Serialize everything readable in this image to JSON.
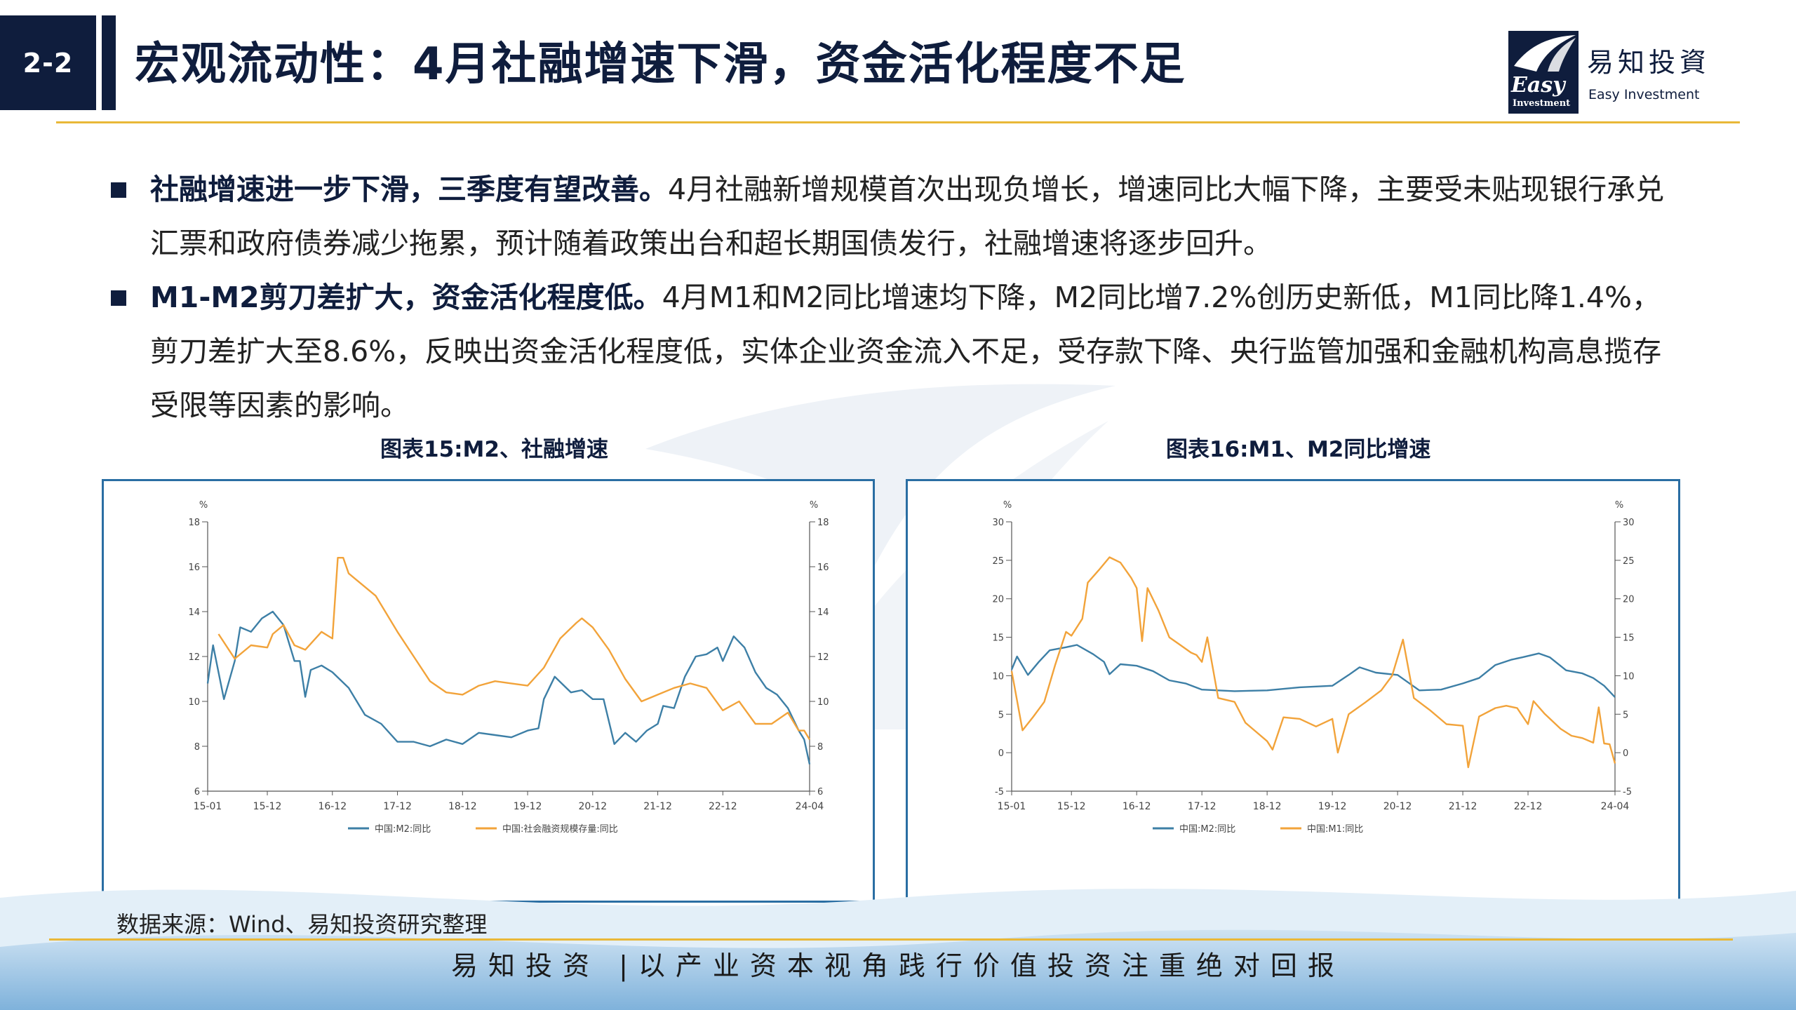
{
  "header": {
    "section_number": "2-2",
    "title": "宏观流动性：4月社融增速下滑，资金活化程度不足",
    "logo_cn": "易知投資",
    "logo_en": "Easy Investment",
    "logo_mark_text": "Easy",
    "logo_mark_sub": "Investment"
  },
  "bullets": [
    {
      "bold": "社融增速进一步下滑，三季度有望改善。",
      "text": "4月社融新增规模首次出现负增长，增速同比大幅下降，主要受未贴现银行承兑汇票和政府债券减少拖累，预计随着政策出台和超长期国债发行，社融增速将逐步回升。"
    },
    {
      "bold": "M1-M2剪刀差扩大，资金活化程度低。",
      "text": "4月M1和M2同比增速均下降，M2同比增7.2%创历史新低，M1同比降1.4%，剪刀差扩大至8.6%，反映出资金活化程度低，实体企业资金流入不足，受存款下降、央行监管加强和金融机构高息揽存受限等因素的影响。"
    }
  ],
  "source": "数据来源：Wind、易知投资研究整理",
  "footer": {
    "slogan": "易知投资 |以产业资本视角践行价值投资注重绝对回报"
  },
  "colors": {
    "navy": "#0f1d3d",
    "gold": "#e9b838",
    "m2": "#3d7fa6",
    "tsf": "#f2a33a",
    "frame": "#2a6ea3"
  },
  "chart_data": [
    {
      "type": "line",
      "title": "图表15:M2、社融增速",
      "unit_left": "%",
      "unit_right": "%",
      "ylim": [
        6,
        18
      ],
      "yticks": [
        "6",
        "8",
        "10",
        "12",
        "14",
        "16",
        "18"
      ],
      "x_range": [
        "2015-01",
        "2024-04"
      ],
      "xticks": [
        "15-01",
        "15-12",
        "16-12",
        "17-12",
        "18-12",
        "19-12",
        "20-12",
        "21-12",
        "22-12",
        "24-04"
      ],
      "legend_position": "bottom",
      "series": [
        {
          "name": "中国:M2:同比",
          "color": "#3d7fa6",
          "points": [
            [
              "2015-01",
              10.8
            ],
            [
              "2015-02",
              12.5
            ],
            [
              "2015-04",
              10.1
            ],
            [
              "2015-06",
              11.8
            ],
            [
              "2015-07",
              13.3
            ],
            [
              "2015-09",
              13.1
            ],
            [
              "2015-11",
              13.7
            ],
            [
              "2016-01",
              14.0
            ],
            [
              "2016-03",
              13.4
            ],
            [
              "2016-05",
              11.8
            ],
            [
              "2016-06",
              11.8
            ],
            [
              "2016-07",
              10.2
            ],
            [
              "2016-08",
              11.4
            ],
            [
              "2016-10",
              11.6
            ],
            [
              "2016-12",
              11.3
            ],
            [
              "2017-03",
              10.6
            ],
            [
              "2017-06",
              9.4
            ],
            [
              "2017-09",
              9.0
            ],
            [
              "2017-12",
              8.2
            ],
            [
              "2018-03",
              8.2
            ],
            [
              "2018-06",
              8.0
            ],
            [
              "2018-09",
              8.3
            ],
            [
              "2018-12",
              8.1
            ],
            [
              "2019-03",
              8.6
            ],
            [
              "2019-06",
              8.5
            ],
            [
              "2019-09",
              8.4
            ],
            [
              "2019-12",
              8.7
            ],
            [
              "2020-02",
              8.8
            ],
            [
              "2020-03",
              10.1
            ],
            [
              "2020-05",
              11.1
            ],
            [
              "2020-08",
              10.4
            ],
            [
              "2020-10",
              10.5
            ],
            [
              "2020-12",
              10.1
            ],
            [
              "2021-02",
              10.1
            ],
            [
              "2021-04",
              8.1
            ],
            [
              "2021-06",
              8.6
            ],
            [
              "2021-08",
              8.2
            ],
            [
              "2021-10",
              8.7
            ],
            [
              "2021-12",
              9.0
            ],
            [
              "2022-01",
              9.8
            ],
            [
              "2022-03",
              9.7
            ],
            [
              "2022-05",
              11.1
            ],
            [
              "2022-07",
              12.0
            ],
            [
              "2022-09",
              12.1
            ],
            [
              "2022-11",
              12.4
            ],
            [
              "2022-12",
              11.8
            ],
            [
              "2023-02",
              12.9
            ],
            [
              "2023-04",
              12.4
            ],
            [
              "2023-06",
              11.3
            ],
            [
              "2023-08",
              10.6
            ],
            [
              "2023-10",
              10.3
            ],
            [
              "2023-12",
              9.7
            ],
            [
              "2024-02",
              8.7
            ],
            [
              "2024-03",
              8.3
            ],
            [
              "2024-04",
              7.2
            ]
          ]
        },
        {
          "name": "中国:社会融资规模存量:同比",
          "color": "#f2a33a",
          "points": [
            [
              "2015-03",
              13.0
            ],
            [
              "2015-06",
              11.9
            ],
            [
              "2015-09",
              12.5
            ],
            [
              "2015-12",
              12.4
            ],
            [
              "2016-01",
              13.0
            ],
            [
              "2016-03",
              13.4
            ],
            [
              "2016-05",
              12.5
            ],
            [
              "2016-07",
              12.3
            ],
            [
              "2016-10",
              13.1
            ],
            [
              "2016-12",
              12.8
            ],
            [
              "2017-01",
              16.4
            ],
            [
              "2017-02",
              16.4
            ],
            [
              "2017-03",
              15.7
            ],
            [
              "2017-06",
              15.1
            ],
            [
              "2017-08",
              14.7
            ],
            [
              "2017-10",
              13.9
            ],
            [
              "2017-12",
              13.1
            ],
            [
              "2018-03",
              12.0
            ],
            [
              "2018-06",
              10.9
            ],
            [
              "2018-09",
              10.4
            ],
            [
              "2018-12",
              10.3
            ],
            [
              "2019-03",
              10.7
            ],
            [
              "2019-06",
              10.9
            ],
            [
              "2019-09",
              10.8
            ],
            [
              "2019-12",
              10.7
            ],
            [
              "2020-03",
              11.5
            ],
            [
              "2020-06",
              12.8
            ],
            [
              "2020-09",
              13.5
            ],
            [
              "2020-10",
              13.7
            ],
            [
              "2020-12",
              13.3
            ],
            [
              "2021-03",
              12.3
            ],
            [
              "2021-06",
              11.0
            ],
            [
              "2021-09",
              10.0
            ],
            [
              "2021-12",
              10.3
            ],
            [
              "2022-03",
              10.6
            ],
            [
              "2022-06",
              10.8
            ],
            [
              "2022-09",
              10.6
            ],
            [
              "2022-12",
              9.6
            ],
            [
              "2023-03",
              10.0
            ],
            [
              "2023-06",
              9.0
            ],
            [
              "2023-09",
              9.0
            ],
            [
              "2023-12",
              9.5
            ],
            [
              "2024-02",
              8.7
            ],
            [
              "2024-03",
              8.7
            ],
            [
              "2024-04",
              8.3
            ]
          ]
        }
      ]
    },
    {
      "type": "line",
      "title": "图表16:M1、M2同比增速",
      "unit_left": "%",
      "unit_right": "%",
      "ylim": [
        -5,
        30
      ],
      "yticks": [
        "-5",
        "0",
        "5",
        "10",
        "15",
        "20",
        "25",
        "30"
      ],
      "x_range": [
        "2015-01",
        "2024-04"
      ],
      "xticks": [
        "15-01",
        "15-12",
        "16-12",
        "17-12",
        "18-12",
        "19-12",
        "20-12",
        "21-12",
        "22-12",
        "24-04"
      ],
      "legend_position": "bottom",
      "series": [
        {
          "name": "中国:M2:同比",
          "color": "#3d7fa6",
          "points": [
            [
              "2015-01",
              10.8
            ],
            [
              "2015-02",
              12.5
            ],
            [
              "2015-04",
              10.1
            ],
            [
              "2015-06",
              11.8
            ],
            [
              "2015-08",
              13.3
            ],
            [
              "2015-11",
              13.7
            ],
            [
              "2016-01",
              14.0
            ],
            [
              "2016-04",
              12.8
            ],
            [
              "2016-06",
              11.8
            ],
            [
              "2016-07",
              10.2
            ],
            [
              "2016-09",
              11.5
            ],
            [
              "2016-12",
              11.3
            ],
            [
              "2017-03",
              10.6
            ],
            [
              "2017-06",
              9.4
            ],
            [
              "2017-09",
              9.0
            ],
            [
              "2017-12",
              8.2
            ],
            [
              "2018-06",
              8.0
            ],
            [
              "2018-12",
              8.1
            ],
            [
              "2019-06",
              8.5
            ],
            [
              "2019-12",
              8.7
            ],
            [
              "2020-03",
              10.1
            ],
            [
              "2020-05",
              11.1
            ],
            [
              "2020-08",
              10.4
            ],
            [
              "2020-12",
              10.1
            ],
            [
              "2021-04",
              8.1
            ],
            [
              "2021-08",
              8.2
            ],
            [
              "2021-12",
              9.0
            ],
            [
              "2022-03",
              9.7
            ],
            [
              "2022-06",
              11.4
            ],
            [
              "2022-09",
              12.1
            ],
            [
              "2022-11",
              12.4
            ],
            [
              "2023-02",
              12.9
            ],
            [
              "2023-04",
              12.4
            ],
            [
              "2023-07",
              10.7
            ],
            [
              "2023-10",
              10.3
            ],
            [
              "2023-12",
              9.7
            ],
            [
              "2024-02",
              8.7
            ],
            [
              "2024-04",
              7.2
            ]
          ]
        },
        {
          "name": "中国:M1:同比",
          "color": "#f2a33a",
          "points": [
            [
              "2015-01",
              10.6
            ],
            [
              "2015-03",
              2.9
            ],
            [
              "2015-05",
              4.7
            ],
            [
              "2015-07",
              6.6
            ],
            [
              "2015-09",
              11.4
            ],
            [
              "2015-11",
              15.7
            ],
            [
              "2015-12",
              15.2
            ],
            [
              "2016-02",
              17.4
            ],
            [
              "2016-03",
              22.1
            ],
            [
              "2016-05",
              23.7
            ],
            [
              "2016-07",
              25.4
            ],
            [
              "2016-09",
              24.7
            ],
            [
              "2016-11",
              22.7
            ],
            [
              "2016-12",
              21.4
            ],
            [
              "2017-01",
              14.5
            ],
            [
              "2017-02",
              21.4
            ],
            [
              "2017-04",
              18.5
            ],
            [
              "2017-06",
              15.0
            ],
            [
              "2017-08",
              14.0
            ],
            [
              "2017-10",
              13.0
            ],
            [
              "2017-11",
              12.7
            ],
            [
              "2017-12",
              11.8
            ],
            [
              "2018-01",
              15.0
            ],
            [
              "2018-03",
              7.1
            ],
            [
              "2018-06",
              6.6
            ],
            [
              "2018-08",
              3.9
            ],
            [
              "2018-10",
              2.7
            ],
            [
              "2018-12",
              1.5
            ],
            [
              "2019-01",
              0.4
            ],
            [
              "2019-03",
              4.6
            ],
            [
              "2019-06",
              4.4
            ],
            [
              "2019-09",
              3.4
            ],
            [
              "2019-12",
              4.4
            ],
            [
              "2020-01",
              0.0
            ],
            [
              "2020-03",
              5.0
            ],
            [
              "2020-06",
              6.5
            ],
            [
              "2020-09",
              8.1
            ],
            [
              "2020-11",
              10.0
            ],
            [
              "2021-01",
              14.7
            ],
            [
              "2021-03",
              7.1
            ],
            [
              "2021-06",
              5.5
            ],
            [
              "2021-09",
              3.7
            ],
            [
              "2021-12",
              3.5
            ],
            [
              "2022-01",
              -1.9
            ],
            [
              "2022-03",
              4.7
            ],
            [
              "2022-06",
              5.8
            ],
            [
              "2022-08",
              6.1
            ],
            [
              "2022-10",
              5.8
            ],
            [
              "2022-12",
              3.7
            ],
            [
              "2023-01",
              6.7
            ],
            [
              "2023-03",
              5.1
            ],
            [
              "2023-06",
              3.1
            ],
            [
              "2023-08",
              2.2
            ],
            [
              "2023-10",
              1.9
            ],
            [
              "2023-12",
              1.3
            ],
            [
              "2024-01",
              5.9
            ],
            [
              "2024-02",
              1.2
            ],
            [
              "2024-03",
              1.1
            ],
            [
              "2024-04",
              -1.4
            ]
          ]
        }
      ]
    }
  ]
}
